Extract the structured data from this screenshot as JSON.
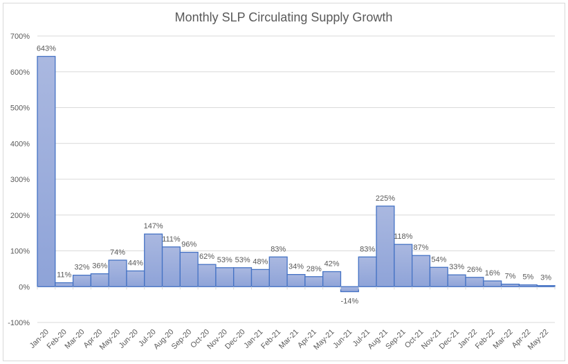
{
  "chart_data": {
    "type": "bar",
    "title": "Monthly SLP Circulating Supply Growth",
    "xlabel": "",
    "ylabel": "",
    "ylim": [
      -100,
      700
    ],
    "yticks": [
      -100,
      0,
      100,
      200,
      300,
      400,
      500,
      600,
      700
    ],
    "ytick_labels": [
      "-100%",
      "0%",
      "100%",
      "200%",
      "300%",
      "400%",
      "500%",
      "600%",
      "700%"
    ],
    "grid": true,
    "legend": "none",
    "categories": [
      "Jan-20",
      "Feb-20",
      "Mar-20",
      "Apr-20",
      "May-20",
      "Jun-20",
      "Jul-20",
      "Aug-20",
      "Sep-20",
      "Oct-20",
      "Nov-20",
      "Dec-20",
      "Jan-21",
      "Feb-21",
      "Mar-21",
      "Apr-21",
      "May-21",
      "Jun-21",
      "Jul-21",
      "Aug-21",
      "Sep-21",
      "Oct-21",
      "Nov-21",
      "Dec-21",
      "Jan-22",
      "Feb-22",
      "Mar-22",
      "Apr-22",
      "May-22"
    ],
    "values": [
      643,
      11,
      32,
      36,
      74,
      44,
      147,
      111,
      96,
      62,
      53,
      53,
      48,
      83,
      34,
      28,
      42,
      -14,
      83,
      225,
      118,
      87,
      54,
      33,
      26,
      16,
      7,
      5,
      3
    ],
    "data_labels": [
      "643%",
      "11%",
      "32%",
      "36%",
      "74%",
      "44%",
      "147%",
      "111%",
      "96%",
      "62%",
      "53%",
      "53%",
      "48%",
      "83%",
      "34%",
      "28%",
      "42%",
      "-14%",
      "83%",
      "225%",
      "118%",
      "87%",
      "54%",
      "33%",
      "26%",
      "16%",
      "7%",
      "5%",
      "3%"
    ],
    "colors": {
      "bar_fill_top": "#aab8e0",
      "bar_fill_bottom": "#8ea3d8",
      "bar_stroke": "#4472c4",
      "grid": "#d9d9d9",
      "text": "#595959"
    }
  }
}
